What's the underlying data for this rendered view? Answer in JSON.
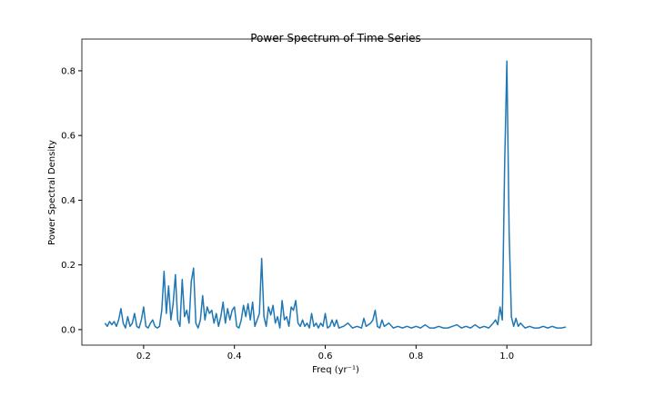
{
  "chart_data": {
    "type": "line",
    "title": "Power Spectrum of Time Series",
    "x_label": "Freq (yr⁻¹)",
    "y_label": "Power Spectral Density",
    "xlim": [
      0.064,
      1.186
    ],
    "ylim": [
      -0.048,
      0.898
    ],
    "xticks": [
      0.2,
      0.4,
      0.6,
      0.8,
      {
        "value": 1,
        "label": "1.0"
      }
    ],
    "yticks": [
      {
        "value": 0,
        "label": "0.0"
      },
      0.2,
      0.4,
      0.6,
      0.8
    ],
    "series": [
      {
        "color": "#1f77b4",
        "x": [
          0.115,
          0.12,
          0.125,
          0.13,
          0.135,
          0.14,
          0.145,
          0.15,
          0.155,
          0.16,
          0.165,
          0.17,
          0.175,
          0.18,
          0.185,
          0.19,
          0.195,
          0.2,
          0.205,
          0.21,
          0.215,
          0.22,
          0.225,
          0.23,
          0.235,
          0.24,
          0.245,
          0.25,
          0.255,
          0.26,
          0.265,
          0.27,
          0.275,
          0.28,
          0.285,
          0.29,
          0.295,
          0.3,
          0.305,
          0.31,
          0.315,
          0.32,
          0.325,
          0.33,
          0.335,
          0.34,
          0.345,
          0.35,
          0.355,
          0.36,
          0.365,
          0.37,
          0.375,
          0.38,
          0.385,
          0.39,
          0.395,
          0.4,
          0.405,
          0.41,
          0.415,
          0.42,
          0.425,
          0.43,
          0.435,
          0.44,
          0.445,
          0.45,
          0.455,
          0.46,
          0.465,
          0.47,
          0.475,
          0.48,
          0.485,
          0.49,
          0.495,
          0.5,
          0.505,
          0.51,
          0.515,
          0.52,
          0.525,
          0.53,
          0.535,
          0.54,
          0.545,
          0.55,
          0.555,
          0.56,
          0.565,
          0.57,
          0.575,
          0.58,
          0.585,
          0.59,
          0.595,
          0.6,
          0.605,
          0.61,
          0.615,
          0.62,
          0.625,
          0.63,
          0.64,
          0.65,
          0.66,
          0.67,
          0.68,
          0.685,
          0.69,
          0.7,
          0.705,
          0.71,
          0.715,
          0.72,
          0.725,
          0.73,
          0.74,
          0.75,
          0.76,
          0.77,
          0.78,
          0.79,
          0.8,
          0.81,
          0.82,
          0.83,
          0.84,
          0.85,
          0.86,
          0.87,
          0.88,
          0.89,
          0.9,
          0.91,
          0.92,
          0.93,
          0.94,
          0.95,
          0.96,
          0.97,
          0.975,
          0.98,
          0.985,
          0.99,
          0.995,
          1.0,
          1.005,
          1.01,
          1.015,
          1.02,
          1.025,
          1.03,
          1.04,
          1.05,
          1.06,
          1.07,
          1.08,
          1.09,
          1.1,
          1.11,
          1.12,
          1.13
        ],
        "values": [
          0.02,
          0.01,
          0.025,
          0.015,
          0.025,
          0.01,
          0.03,
          0.065,
          0.02,
          0.005,
          0.04,
          0.01,
          0.02,
          0.05,
          0.01,
          0.005,
          0.03,
          0.07,
          0.01,
          0.005,
          0.02,
          0.03,
          0.01,
          0.005,
          0.01,
          0.06,
          0.18,
          0.05,
          0.135,
          0.03,
          0.08,
          0.17,
          0.03,
          0.01,
          0.155,
          0.04,
          0.06,
          0.02,
          0.15,
          0.19,
          0.02,
          0.005,
          0.03,
          0.105,
          0.03,
          0.07,
          0.05,
          0.06,
          0.02,
          0.05,
          0.01,
          0.04,
          0.085,
          0.02,
          0.065,
          0.03,
          0.06,
          0.07,
          0.01,
          0.005,
          0.03,
          0.075,
          0.04,
          0.08,
          0.03,
          0.085,
          0.01,
          0.03,
          0.05,
          0.22,
          0.04,
          0.01,
          0.07,
          0.045,
          0.075,
          0.02,
          0.04,
          0.005,
          0.09,
          0.03,
          0.04,
          0.01,
          0.07,
          0.06,
          0.09,
          0.02,
          0.01,
          0.03,
          0.01,
          0.02,
          0.005,
          0.05,
          0.01,
          0.02,
          0.005,
          0.02,
          0.01,
          0.05,
          0.005,
          0.01,
          0.03,
          0.01,
          0.03,
          0.005,
          0.01,
          0.02,
          0.005,
          0.01,
          0.005,
          0.035,
          0.01,
          0.02,
          0.03,
          0.06,
          0.01,
          0.005,
          0.03,
          0.01,
          0.02,
          0.005,
          0.01,
          0.005,
          0.01,
          0.005,
          0.01,
          0.005,
          0.015,
          0.005,
          0.005,
          0.01,
          0.005,
          0.005,
          0.01,
          0.015,
          0.005,
          0.01,
          0.005,
          0.015,
          0.005,
          0.01,
          0.005,
          0.02,
          0.03,
          0.015,
          0.07,
          0.03,
          0.5,
          0.83,
          0.3,
          0.04,
          0.01,
          0.035,
          0.01,
          0.02,
          0.005,
          0.01,
          0.005,
          0.005,
          0.01,
          0.005,
          0.01,
          0.005,
          0.005,
          0.008
        ]
      }
    ]
  }
}
